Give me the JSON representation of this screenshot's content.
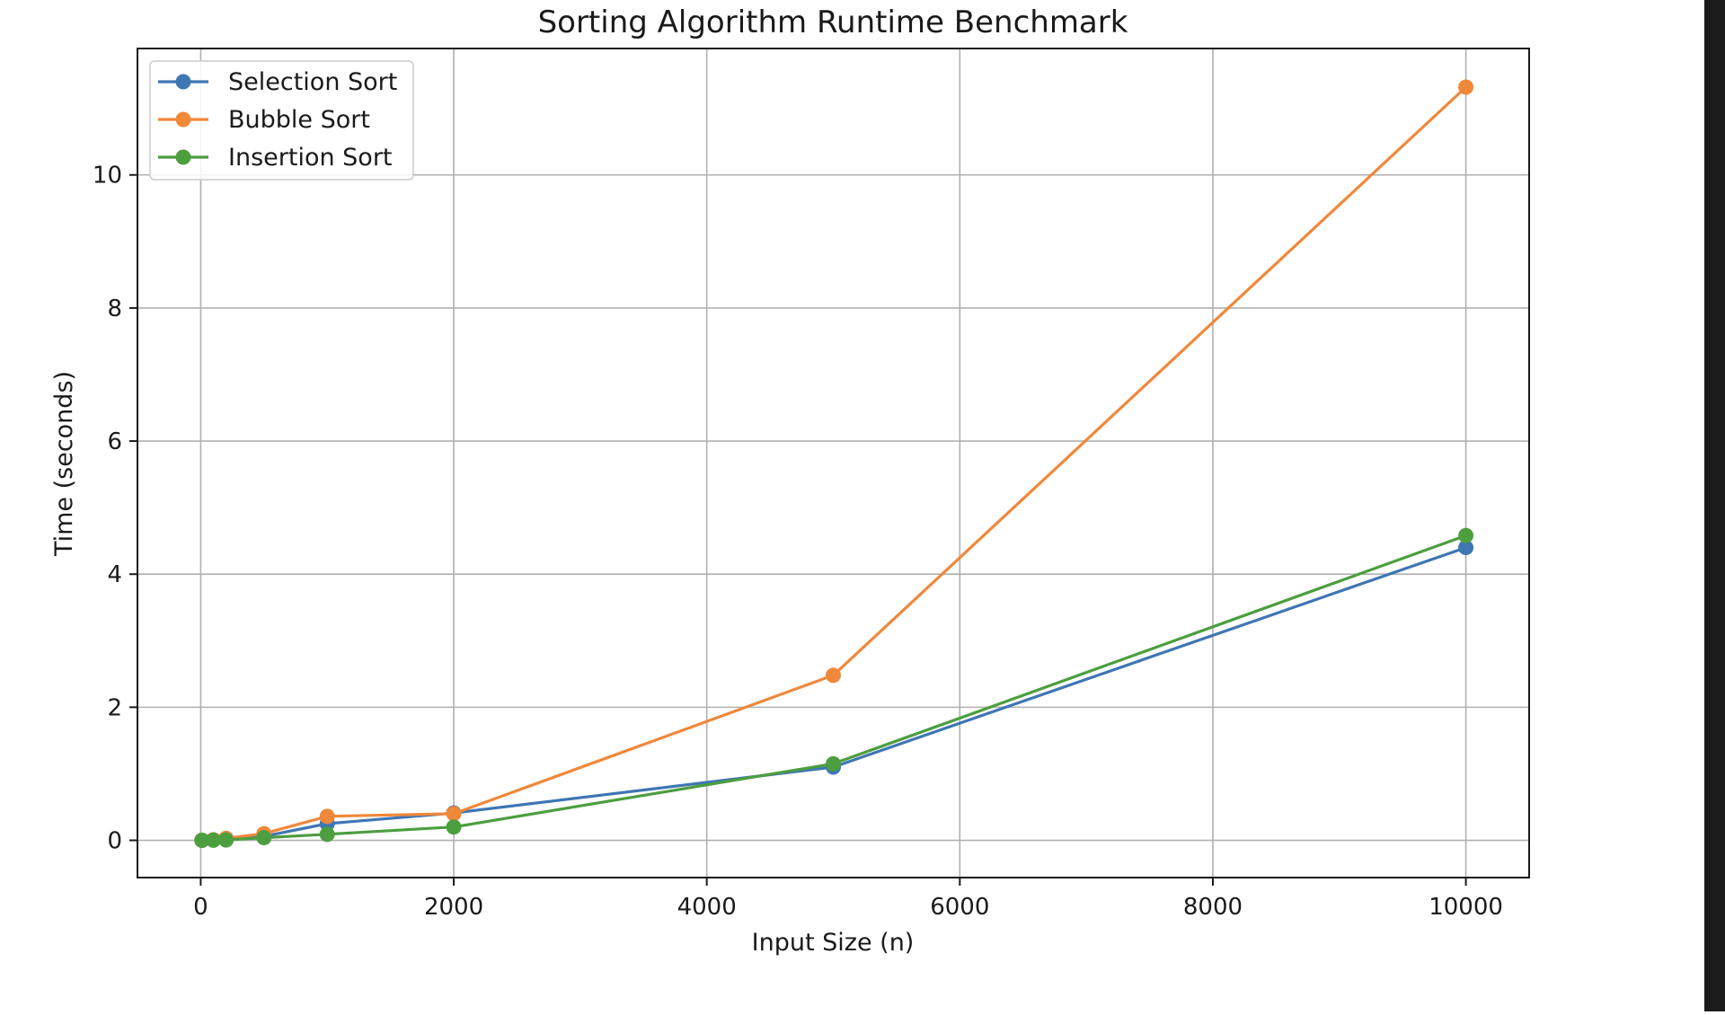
{
  "chart_data": {
    "type": "line",
    "title": "Sorting Algorithm Runtime Benchmark",
    "xlabel": "Input Size (n)",
    "ylabel": "Time (seconds)",
    "xlim": [
      -500,
      10500
    ],
    "ylim": [
      -0.56,
      11.9
    ],
    "xticks": [
      0,
      2000,
      4000,
      6000,
      8000,
      10000
    ],
    "yticks": [
      0,
      2,
      4,
      6,
      8,
      10
    ],
    "grid": true,
    "legend_position": "top-left",
    "x": [
      10,
      100,
      200,
      500,
      1000,
      2000,
      5000,
      10000
    ],
    "series": [
      {
        "name": "Selection Sort",
        "color": "#3f76b4",
        "values": [
          0.0,
          0.005,
          0.01,
          0.06,
          0.25,
          0.41,
          1.1,
          4.4
        ]
      },
      {
        "name": "Bubble Sort",
        "color": "#f0883a",
        "values": [
          0.0,
          0.008,
          0.03,
          0.1,
          0.36,
          0.4,
          2.48,
          11.32
        ]
      },
      {
        "name": "Insertion Sort",
        "color": "#4c9e3f",
        "values": [
          0.0,
          0.002,
          0.005,
          0.04,
          0.09,
          0.2,
          1.15,
          4.58
        ]
      }
    ]
  }
}
